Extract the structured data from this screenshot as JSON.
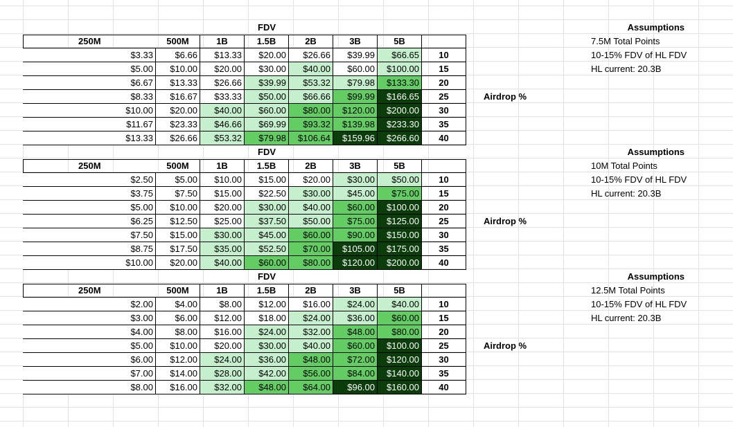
{
  "columns": [
    "250M",
    "500M",
    "1B",
    "1.5B",
    "2B",
    "3B",
    "5B"
  ],
  "fdv_label": "FDV",
  "airdrop_label": "Airdrop %",
  "assumptions_title": "Assumptions",
  "shared_assumptions": [
    "10-15% FDV of HL FDV",
    "HL current: 20.3B"
  ],
  "percents": [
    "10",
    "15",
    "20",
    "25",
    "30",
    "35",
    "40"
  ],
  "colors": {
    "white": "#ffffff",
    "pale": "#c6efce",
    "light": "#a9e4a9",
    "mid": "#63cd63",
    "strong": "#3fb93f",
    "dark": "#0b3d0b"
  },
  "blocks": [
    {
      "total_points": "7.5M Total Points",
      "rows": [
        [
          "$3.33",
          "$6.66",
          "$13.33",
          "$20.00",
          "$26.66",
          "$39.99",
          "$66.65"
        ],
        [
          "$5.00",
          "$10.00",
          "$20.00",
          "$30.00",
          "$40.00",
          "$60.00",
          "$100.00"
        ],
        [
          "$6.67",
          "$13.33",
          "$26.66",
          "$39.99",
          "$53.32",
          "$79.98",
          "$133.30"
        ],
        [
          "$8.33",
          "$16.67",
          "$33.33",
          "$50.00",
          "$66.66",
          "$99.99",
          "$166.65"
        ],
        [
          "$10.00",
          "$20.00",
          "$40.00",
          "$60.00",
          "$80.00",
          "$120.00",
          "$200.00"
        ],
        [
          "$11.67",
          "$23.33",
          "$46.66",
          "$69.99",
          "$93.32",
          "$139.98",
          "$233.30"
        ],
        [
          "$13.33",
          "$26.66",
          "$53.32",
          "$79.98",
          "$106.64",
          "$159.96",
          "$266.60"
        ]
      ],
      "shades": [
        [
          "white",
          "white",
          "white",
          "white",
          "white",
          "white",
          "pale"
        ],
        [
          "white",
          "white",
          "white",
          "white",
          "pale",
          "white",
          "pale"
        ],
        [
          "white",
          "white",
          "white",
          "pale",
          "pale",
          "pale",
          "mid"
        ],
        [
          "white",
          "white",
          "white",
          "pale",
          "pale",
          "mid",
          "dark"
        ],
        [
          "white",
          "white",
          "pale",
          "pale",
          "mid",
          "mid",
          "dark"
        ],
        [
          "white",
          "white",
          "pale",
          "pale",
          "mid",
          "mid",
          "dark"
        ],
        [
          "white",
          "white",
          "pale",
          "mid",
          "mid",
          "dark",
          "dark"
        ]
      ]
    },
    {
      "total_points": "10M Total Points",
      "rows": [
        [
          "$2.50",
          "$5.00",
          "$10.00",
          "$15.00",
          "$20.00",
          "$30.00",
          "$50.00"
        ],
        [
          "$3.75",
          "$7.50",
          "$15.00",
          "$22.50",
          "$30.00",
          "$45.00",
          "$75.00"
        ],
        [
          "$5.00",
          "$10.00",
          "$20.00",
          "$30.00",
          "$40.00",
          "$60.00",
          "$100.00"
        ],
        [
          "$6.25",
          "$12.50",
          "$25.00",
          "$37.50",
          "$50.00",
          "$75.00",
          "$125.00"
        ],
        [
          "$7.50",
          "$15.00",
          "$30.00",
          "$45.00",
          "$60.00",
          "$90.00",
          "$150.00"
        ],
        [
          "$8.75",
          "$17.50",
          "$35.00",
          "$52.50",
          "$70.00",
          "$105.00",
          "$175.00"
        ],
        [
          "$10.00",
          "$20.00",
          "$40.00",
          "$60.00",
          "$80.00",
          "$120.00",
          "$200.00"
        ]
      ],
      "shades": [
        [
          "white",
          "white",
          "white",
          "white",
          "white",
          "pale",
          "pale"
        ],
        [
          "white",
          "white",
          "white",
          "white",
          "pale",
          "pale",
          "mid"
        ],
        [
          "white",
          "white",
          "white",
          "pale",
          "pale",
          "mid",
          "dark"
        ],
        [
          "white",
          "white",
          "white",
          "pale",
          "pale",
          "mid",
          "dark"
        ],
        [
          "white",
          "white",
          "pale",
          "pale",
          "mid",
          "mid",
          "dark"
        ],
        [
          "white",
          "white",
          "pale",
          "pale",
          "mid",
          "dark",
          "dark"
        ],
        [
          "white",
          "white",
          "pale",
          "mid",
          "mid",
          "dark",
          "dark"
        ]
      ]
    },
    {
      "total_points": "12.5M Total Points",
      "rows": [
        [
          "$2.00",
          "$4.00",
          "$8.00",
          "$12.00",
          "$16.00",
          "$24.00",
          "$40.00"
        ],
        [
          "$3.00",
          "$6.00",
          "$12.00",
          "$18.00",
          "$24.00",
          "$36.00",
          "$60.00"
        ],
        [
          "$4.00",
          "$8.00",
          "$16.00",
          "$24.00",
          "$32.00",
          "$48.00",
          "$80.00"
        ],
        [
          "$5.00",
          "$10.00",
          "$20.00",
          "$30.00",
          "$40.00",
          "$60.00",
          "$100.00"
        ],
        [
          "$6.00",
          "$12.00",
          "$24.00",
          "$36.00",
          "$48.00",
          "$72.00",
          "$120.00"
        ],
        [
          "$7.00",
          "$14.00",
          "$28.00",
          "$42.00",
          "$56.00",
          "$84.00",
          "$140.00"
        ],
        [
          "$8.00",
          "$16.00",
          "$32.00",
          "$48.00",
          "$64.00",
          "$96.00",
          "$160.00"
        ]
      ],
      "shades": [
        [
          "white",
          "white",
          "white",
          "white",
          "white",
          "pale",
          "pale"
        ],
        [
          "white",
          "white",
          "white",
          "white",
          "pale",
          "pale",
          "mid"
        ],
        [
          "white",
          "white",
          "white",
          "pale",
          "pale",
          "mid",
          "mid"
        ],
        [
          "white",
          "white",
          "white",
          "pale",
          "pale",
          "mid",
          "dark"
        ],
        [
          "white",
          "white",
          "pale",
          "pale",
          "mid",
          "mid",
          "dark"
        ],
        [
          "white",
          "white",
          "pale",
          "pale",
          "mid",
          "mid",
          "dark"
        ],
        [
          "white",
          "white",
          "pale",
          "mid",
          "mid",
          "dark",
          "dark"
        ]
      ]
    }
  ]
}
